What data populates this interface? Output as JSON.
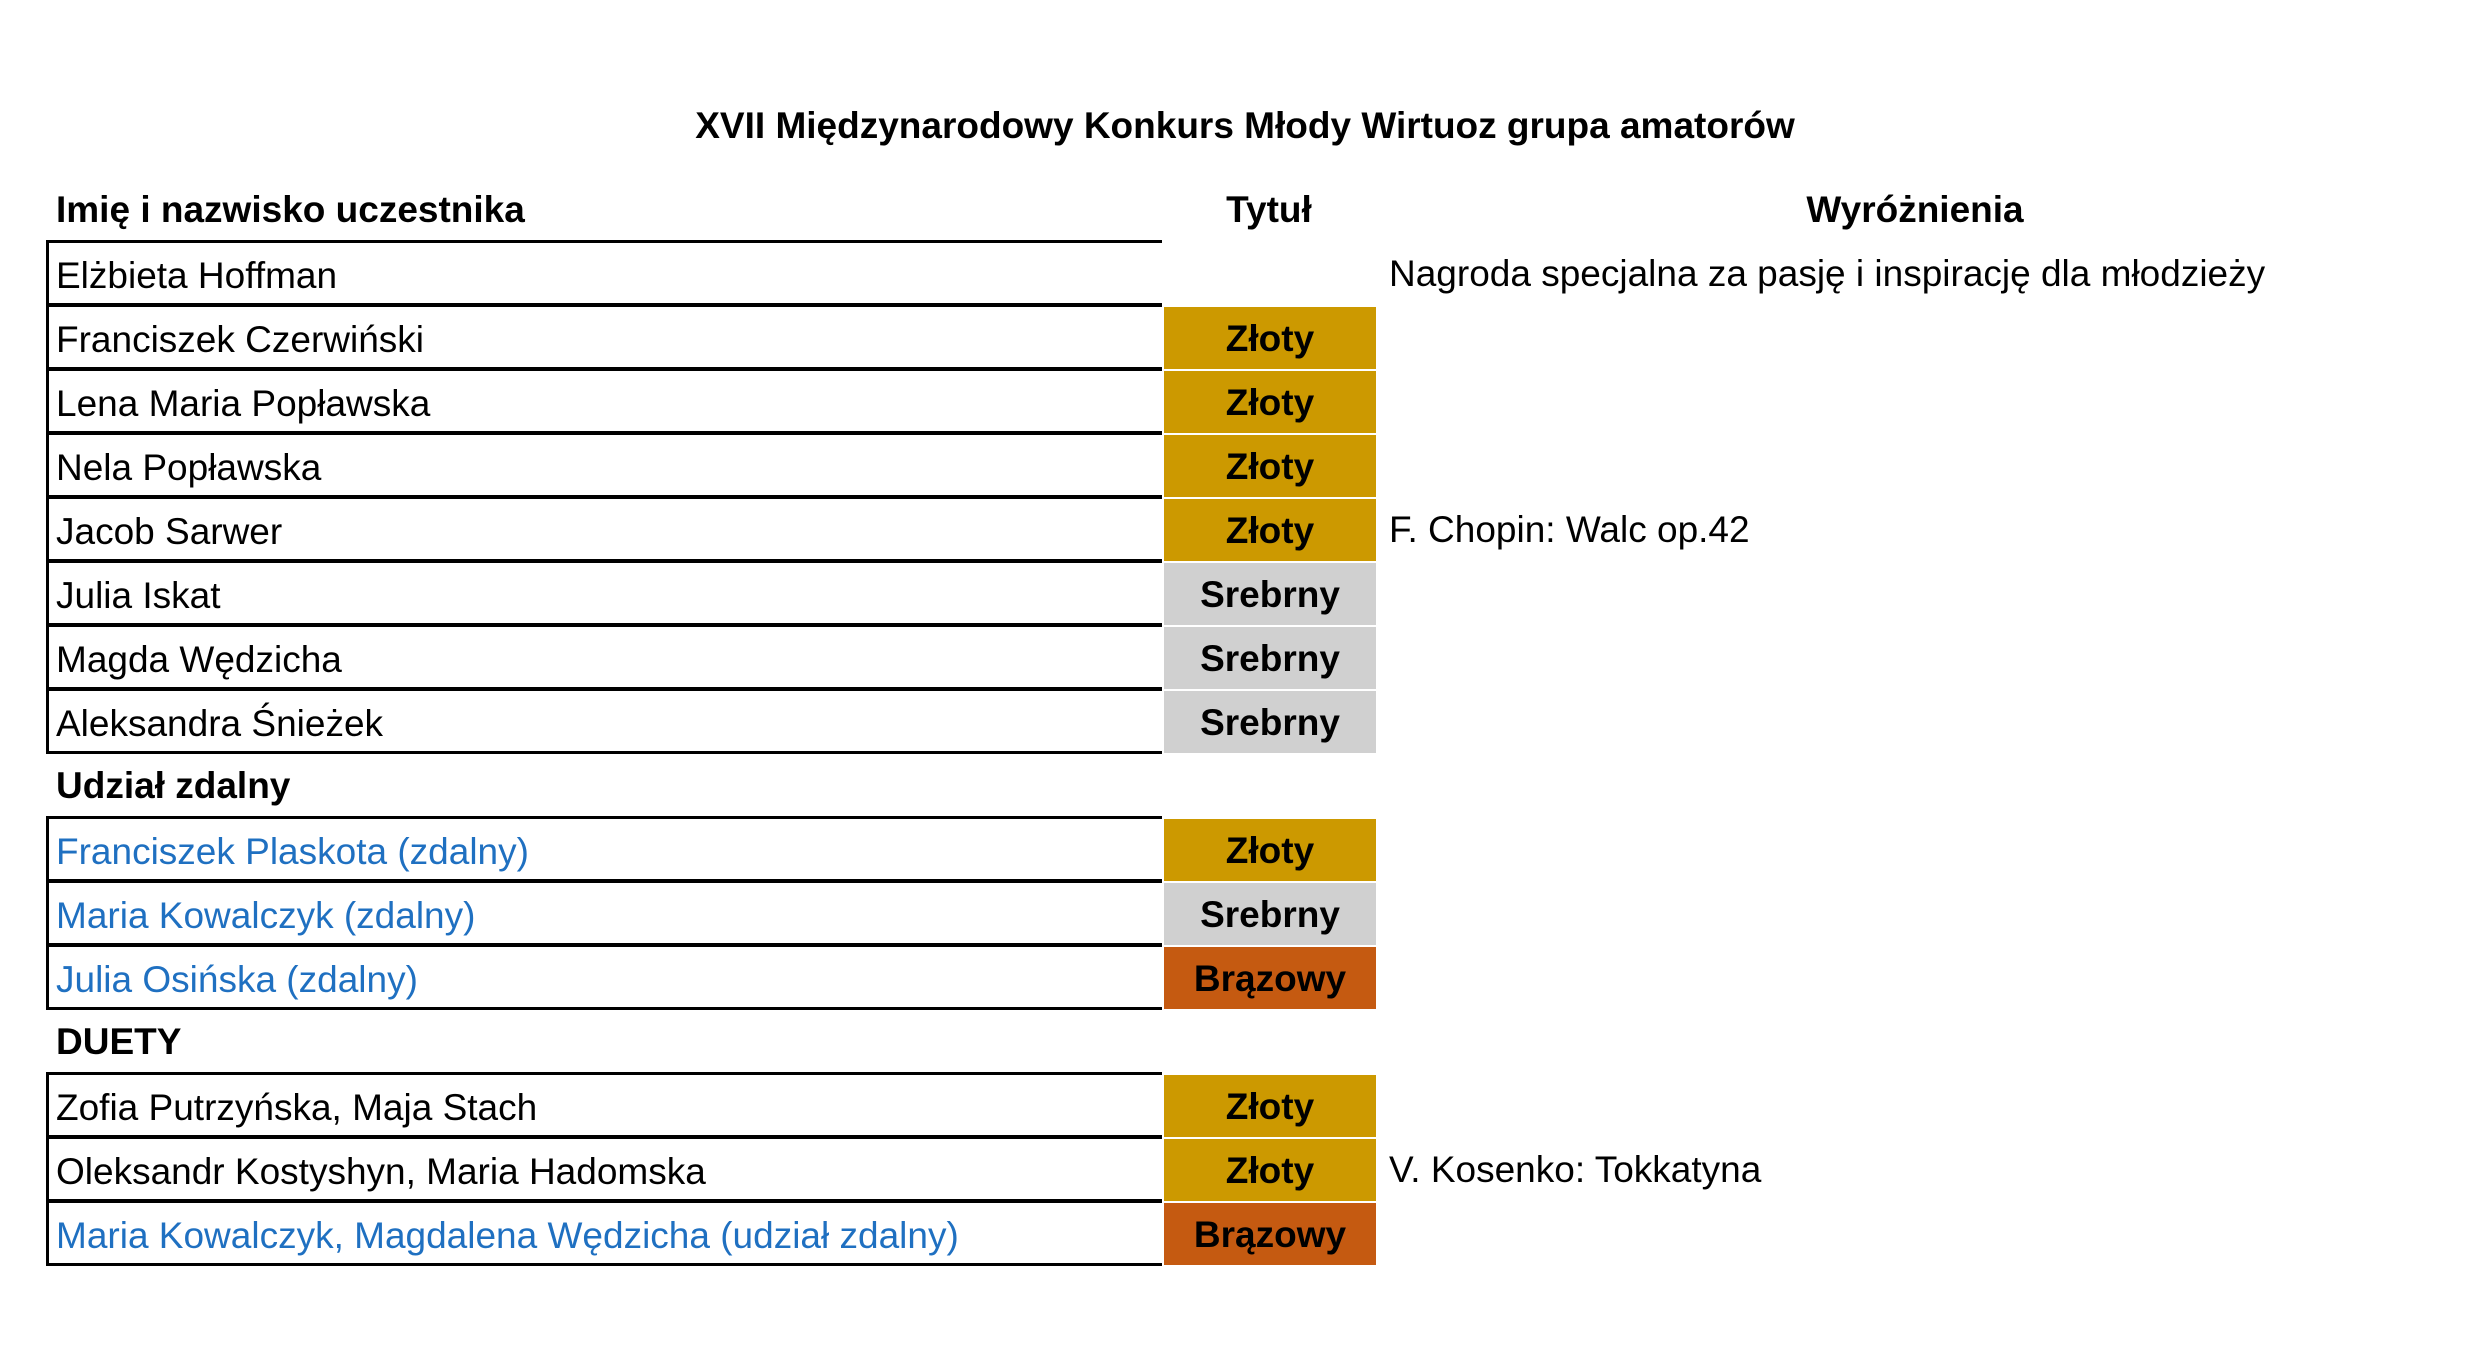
{
  "title": "XVII Międzynarodowy Konkurs Młody Wirtuoz grupa amatorów",
  "table": {
    "headers": [
      "Imię i nazwisko uczestnika",
      "Tytuł",
      "Wyróżnienia"
    ],
    "rows": [
      {
        "name": "Elżbieta Hoffman",
        "award": "Nagroda specjalna za pasję i inspirację dla młodzieży"
      },
      {
        "name": "Franciszek Czerwiński",
        "title": "Złoty",
        "title_color": "#cc9900"
      },
      {
        "name": "Lena Maria Popławska",
        "title": "Złoty",
        "title_color": "#cc9900"
      },
      {
        "name": "Nela Popławska",
        "title": "Złoty",
        "title_color": "#cc9900"
      },
      {
        "name": "Jacob Sarwer",
        "title": "Złoty",
        "title_color": "#cc9900",
        "award": "F. Chopin: Walc op.42"
      },
      {
        "name": "Julia Iskat",
        "title": "Srebrny",
        "title_color": "#d0d0d0"
      },
      {
        "name": "Magda Wędzicha",
        "title": "Srebrny",
        "title_color": "#d0d0d0"
      },
      {
        "name": "Aleksandra Śnieżek",
        "title": "Srebrny",
        "title_color": "#d0d0d0"
      },
      {
        "section": "Udział zdalny"
      },
      {
        "name": "Franciszek Plaskota (zdalny)",
        "name_color": "#1f70c1",
        "title": "Złoty",
        "title_color": "#cc9900"
      },
      {
        "name": "Maria Kowalczyk (zdalny)",
        "name_color": "#1f70c1",
        "title": "Srebrny",
        "title_color": "#d0d0d0"
      },
      {
        "name": "Julia Osińska (zdalny)",
        "name_color": "#1f70c1",
        "title": "Brązowy",
        "title_color": "#c55a11"
      },
      {
        "section": "DUETY"
      },
      {
        "name": "Zofia Putrzyńska, Maja Stach",
        "title": "Złoty",
        "title_color": "#cc9900"
      },
      {
        "name": "Oleksandr Kostyshyn, Maria Hadomska",
        "title": "Złoty",
        "title_color": "#cc9900",
        "award": "V. Kosenko: Tokkatyna"
      },
      {
        "name": "Maria Kowalczyk, Magdalena Wędzicha (udział zdalny)",
        "name_color": "#1f70c1",
        "title": "Brązowy",
        "title_color": "#c55a11"
      }
    ]
  }
}
